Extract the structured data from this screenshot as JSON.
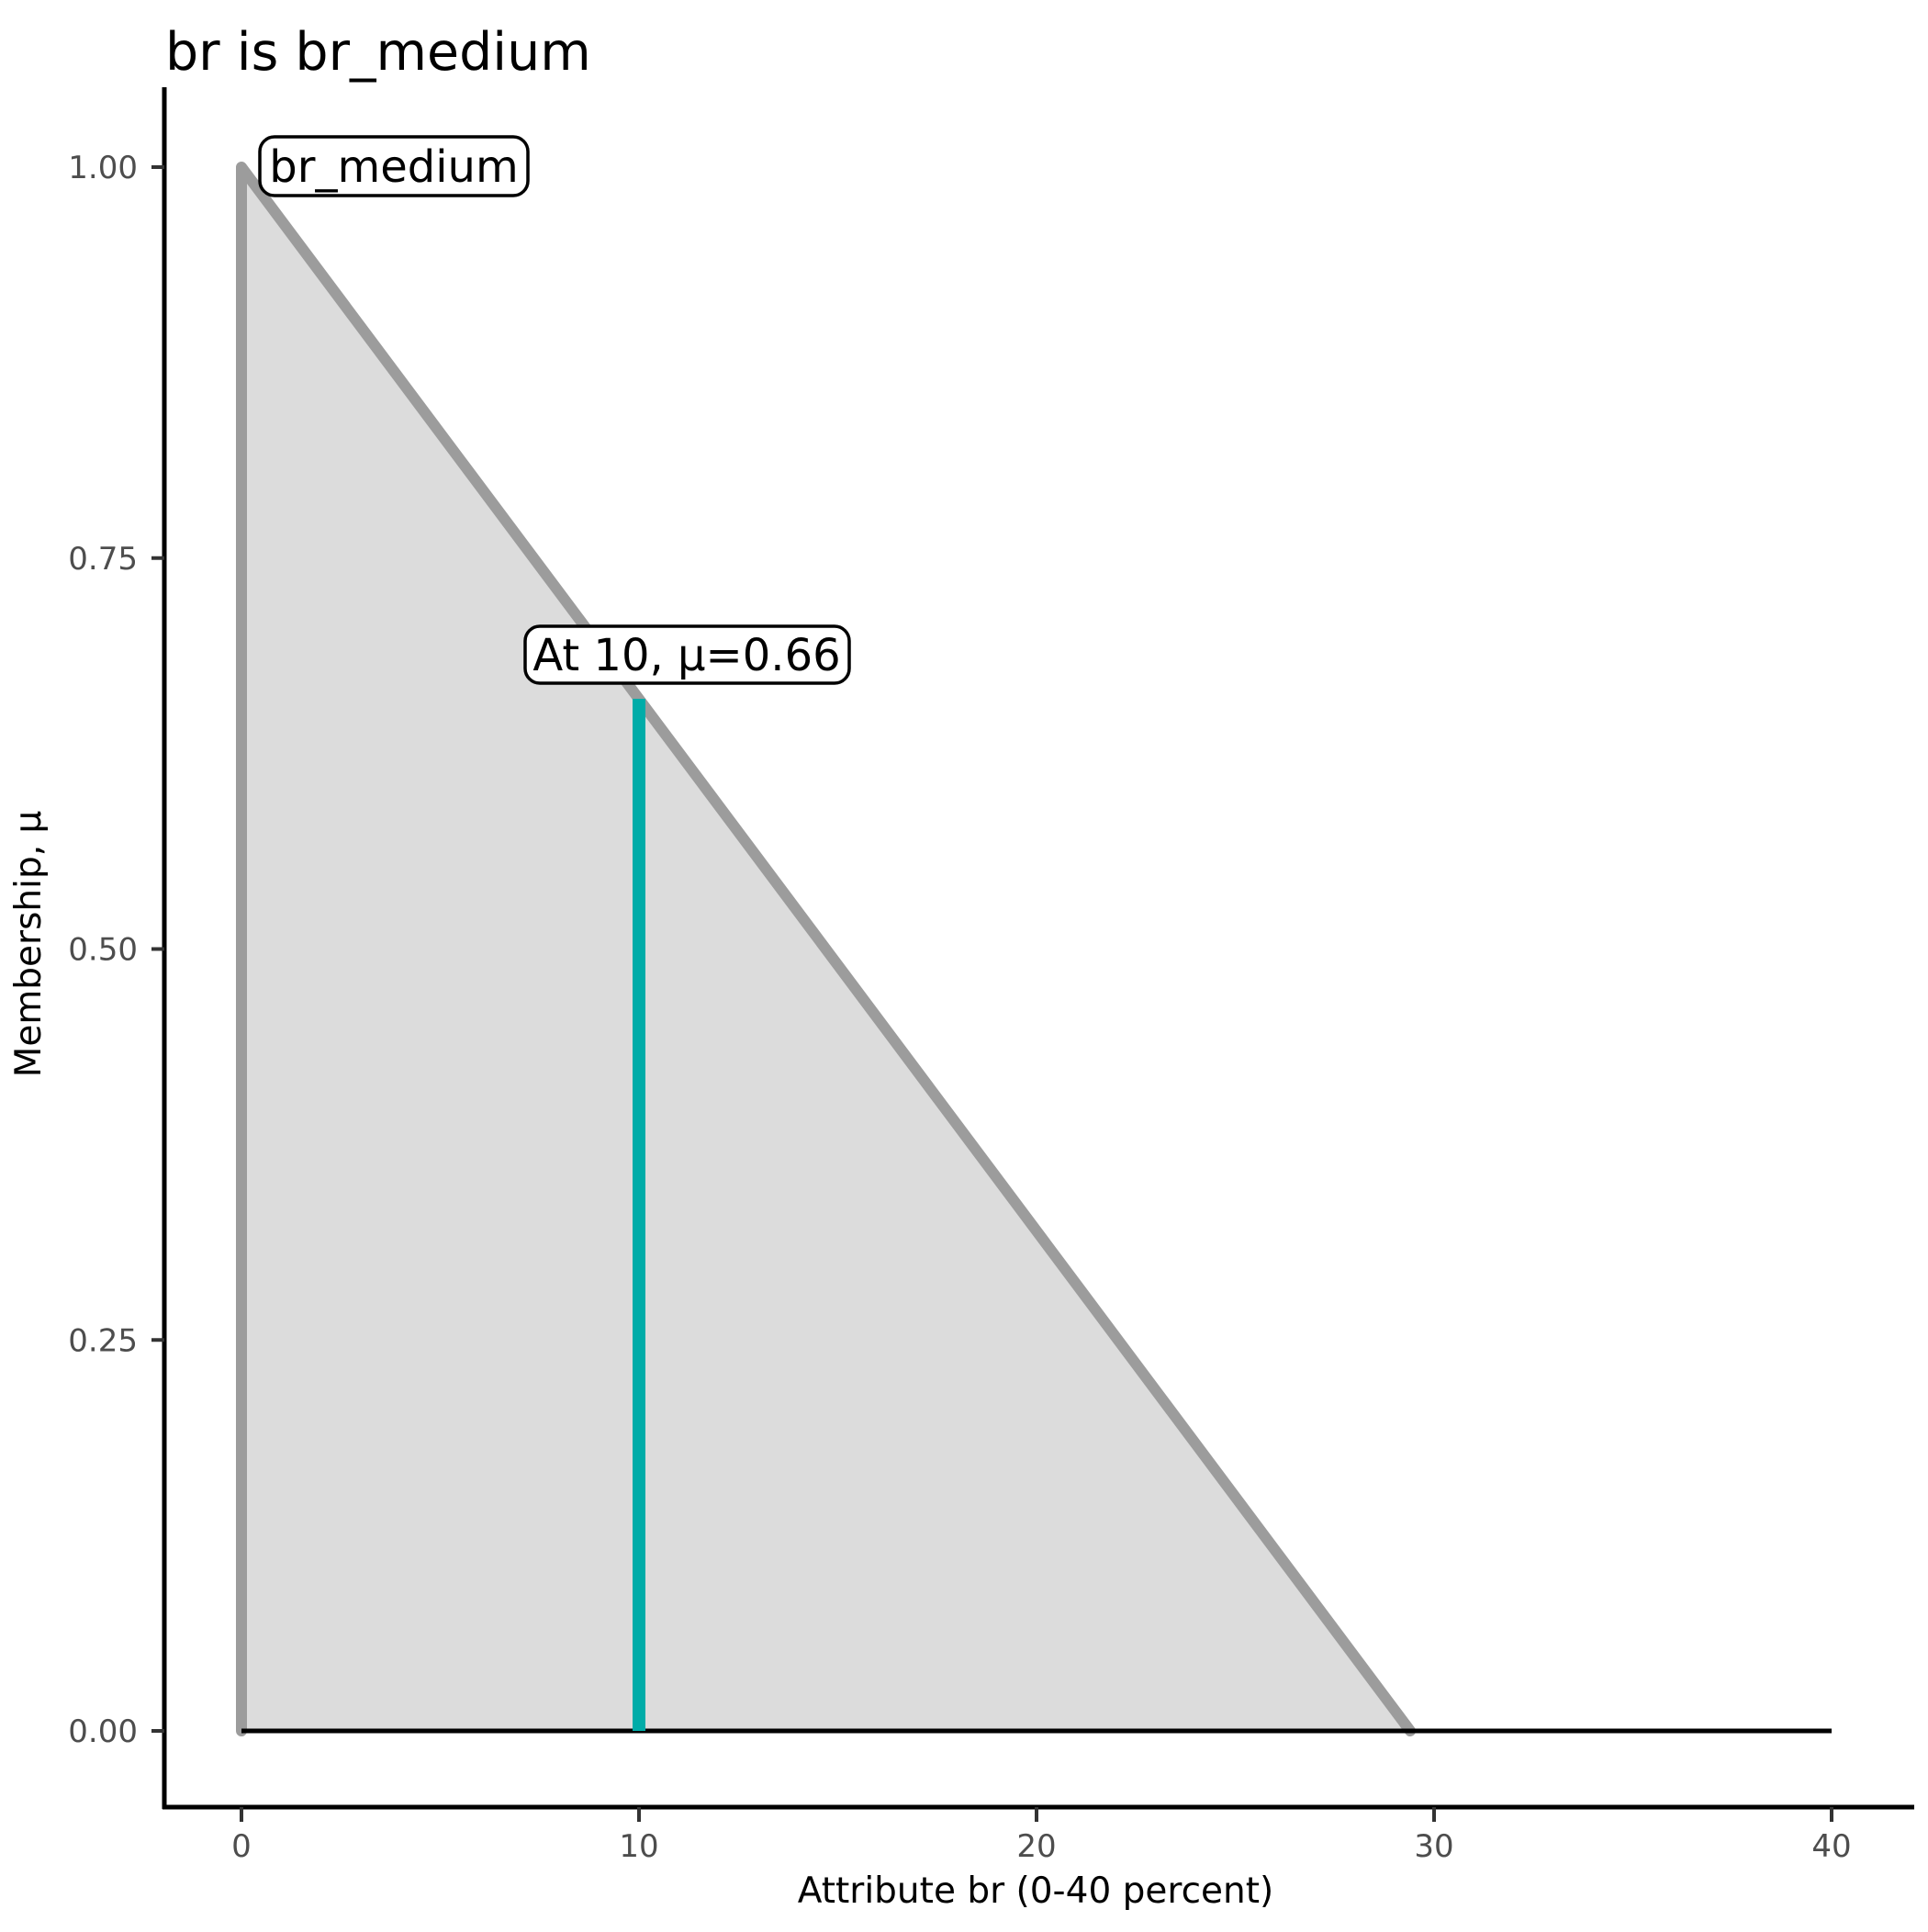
{
  "title": "br is br_medium",
  "chart_data": {
    "type": "area",
    "title": "br is br_medium",
    "xlabel": "Attribute br (0-40 percent)",
    "ylabel": "Membership, μ",
    "xlim": [
      0,
      40
    ],
    "ylim": [
      0,
      1
    ],
    "x_ticks": [
      {
        "value": 0,
        "label": "0"
      },
      {
        "value": 10,
        "label": "10"
      },
      {
        "value": 20,
        "label": "20"
      },
      {
        "value": 30,
        "label": "30"
      },
      {
        "value": 40,
        "label": "40"
      }
    ],
    "y_ticks": [
      {
        "value": 0.0,
        "label": "0.00"
      },
      {
        "value": 0.25,
        "label": "0.25"
      },
      {
        "value": 0.5,
        "label": "0.50"
      },
      {
        "value": 0.75,
        "label": "0.75"
      },
      {
        "value": 1.0,
        "label": "1.00"
      }
    ],
    "grid": false,
    "legend": "none",
    "series": [
      {
        "name": "br_medium",
        "kind": "membership-function",
        "points": [
          [
            0,
            0
          ],
          [
            0,
            1
          ],
          [
            29.4,
            0
          ]
        ],
        "fill_color": "#DCDCDC",
        "stroke_color": "#9C9C9C"
      }
    ],
    "baseline": {
      "y": 0,
      "x_from": 0,
      "x_to": 40,
      "color": "#000000"
    },
    "indicator": {
      "x": 10,
      "mu": 0.66,
      "color": "#00ACA8"
    },
    "annotations": [
      {
        "id": "mf-name-label",
        "text": "br_medium",
        "anchor_x": 0.45,
        "anchor_y": 1.02
      },
      {
        "id": "value-callout",
        "text": "At 10, μ=0.66",
        "anchor_x": 7.14,
        "anchor_y": 0.706
      }
    ],
    "colors": {
      "axis": "#000000",
      "tick_label": "#4D4D4D",
      "tick_mark": "#333333",
      "title_text": "#000000",
      "annotation_box_fill": "#FFFFFF",
      "annotation_box_border": "#000000"
    }
  }
}
